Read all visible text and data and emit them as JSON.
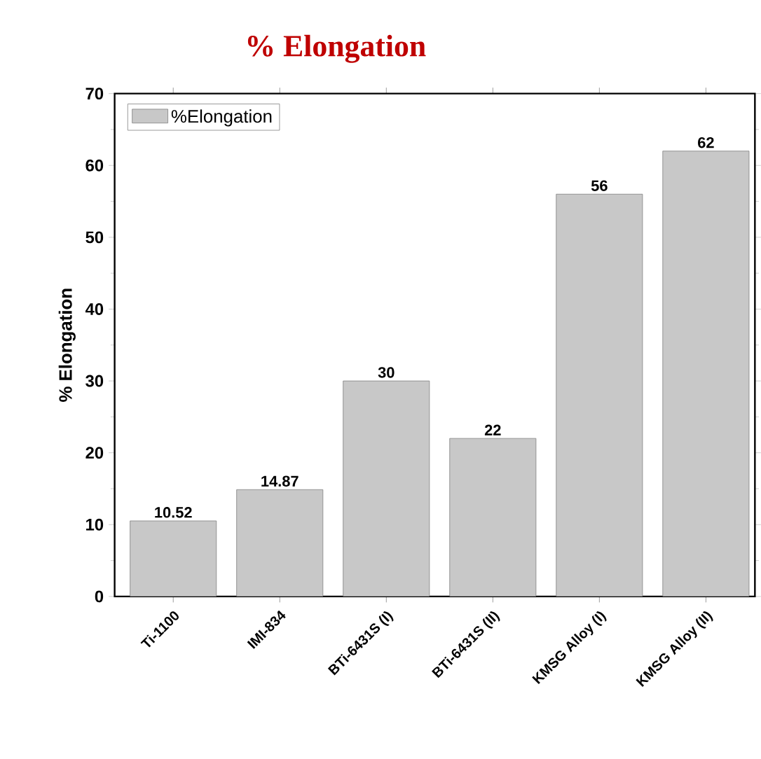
{
  "chart_data": {
    "type": "bar",
    "title": "% Elongation",
    "ylabel": "% Elongation",
    "categories": [
      "Ti-1100",
      "IMI-834",
      "BTi-6431S (I)",
      "BTi-6431S (II)",
      "KMSG Alloy (I)",
      "KMSG Alloy (II)"
    ],
    "series": [
      {
        "name": "%Elongation",
        "color": "#c8c8c8",
        "values": [
          10.52,
          14.87,
          30,
          22,
          56,
          62
        ]
      }
    ],
    "ylim": [
      0,
      70
    ],
    "yticks": [
      0,
      10,
      20,
      30,
      40,
      50,
      60,
      70
    ],
    "data_labels": true,
    "legend": "top left",
    "grid": false
  }
}
